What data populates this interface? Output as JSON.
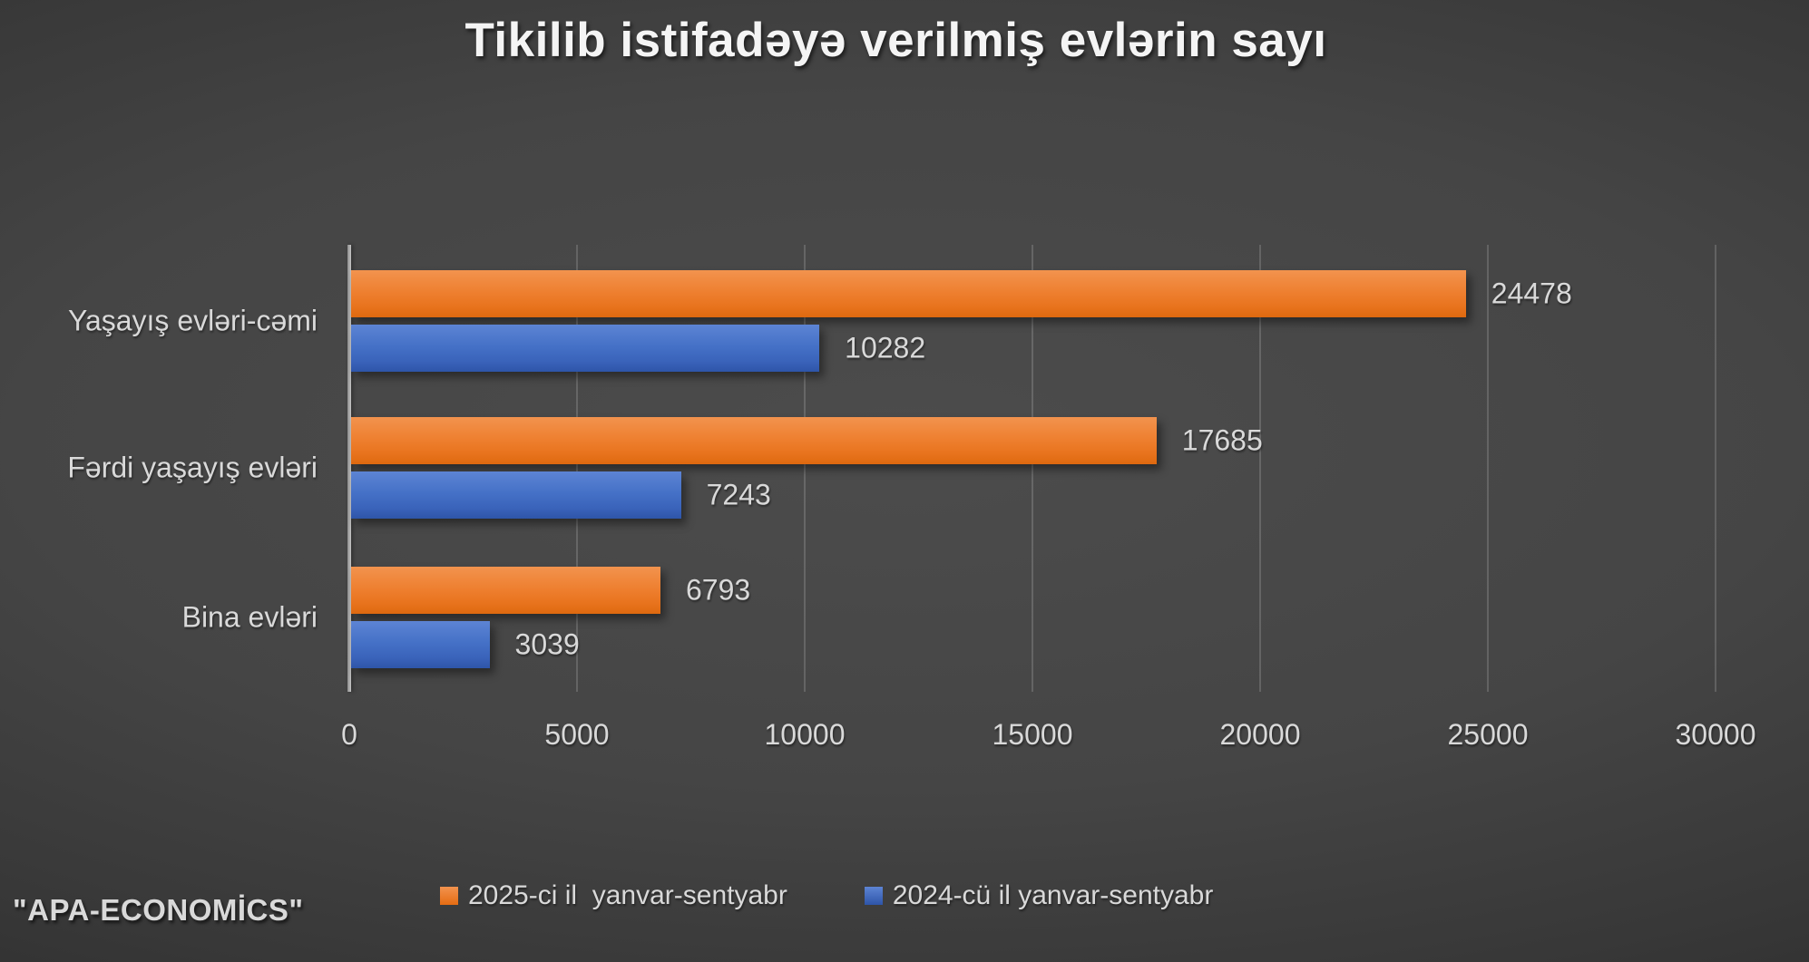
{
  "source": "\"APA-ECONOMİCS\"",
  "colors": {
    "background_center": "#4c4c4c",
    "background_edge": "#212121",
    "series_2025_orange": "#ED7D31",
    "series_2024_blue": "#4472C4",
    "text": "#d9d9d9",
    "axis_line": "#b5b5b5"
  },
  "chart_data": {
    "type": "bar",
    "orientation": "horizontal",
    "title": "Tikilib istifadəyə verilmiş evlərin sayı",
    "categories": [
      "Yaşayış evləri-cəmi",
      "Fərdi yaşayış evləri",
      "Bina evləri"
    ],
    "series": [
      {
        "name": "2025-ci il  yanvar-sentyabr",
        "color_key": "s0",
        "values": [
          24478,
          17685,
          6793
        ]
      },
      {
        "name": "2024-cü il yanvar-sentyabr",
        "color_key": "s1",
        "values": [
          10282,
          7243,
          3039
        ]
      }
    ],
    "xlim": [
      0,
      30000
    ],
    "xticks": [
      0,
      5000,
      10000,
      15000,
      20000,
      25000,
      30000
    ],
    "grid": true,
    "data_labels": true,
    "legend_position": "bottom"
  }
}
